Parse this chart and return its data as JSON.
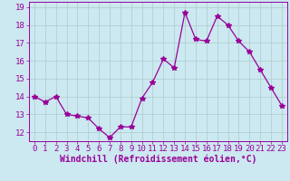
{
  "x": [
    0,
    1,
    2,
    3,
    4,
    5,
    6,
    7,
    8,
    9,
    10,
    11,
    12,
    13,
    14,
    15,
    16,
    17,
    18,
    19,
    20,
    21,
    22,
    23
  ],
  "y": [
    14.0,
    13.7,
    14.0,
    13.0,
    12.9,
    12.8,
    12.2,
    11.7,
    12.3,
    12.3,
    13.9,
    14.8,
    16.1,
    15.6,
    18.7,
    17.2,
    17.1,
    18.5,
    18.0,
    17.1,
    16.5,
    15.5,
    14.5,
    13.5
  ],
  "line_color": "#990099",
  "marker": "*",
  "marker_size": 4,
  "background_color": "#cce8f0",
  "grid_color": "#aacccc",
  "xlabel": "Windchill (Refroidissement éolien,°C)",
  "xlabel_fontsize": 7,
  "tick_fontsize": 6.5,
  "ylim": [
    11.5,
    19.3
  ],
  "xlim": [
    -0.5,
    23.5
  ],
  "yticks": [
    12,
    13,
    14,
    15,
    16,
    17,
    18,
    19
  ],
  "xticks": [
    0,
    1,
    2,
    3,
    4,
    5,
    6,
    7,
    8,
    9,
    10,
    11,
    12,
    13,
    14,
    15,
    16,
    17,
    18,
    19,
    20,
    21,
    22,
    23
  ]
}
